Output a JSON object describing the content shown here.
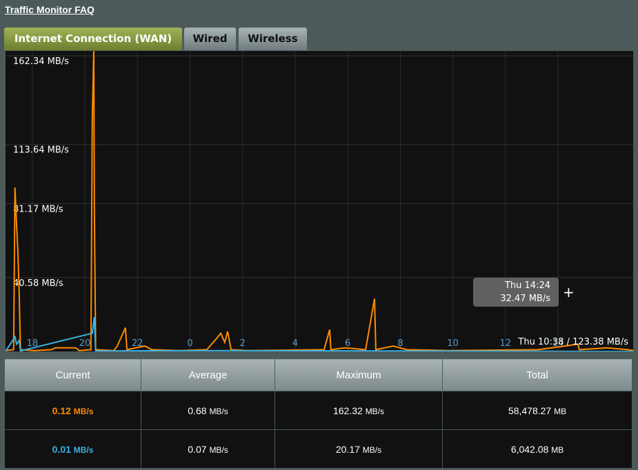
{
  "header": {
    "title": "Traffic Monitor FAQ"
  },
  "tabs": [
    "Internet Connection (WAN)",
    "Wired",
    "Wireless"
  ],
  "chart_data": {
    "type": "line",
    "xlim": [
      16.98,
      40.86
    ],
    "ylim": [
      0,
      165
    ],
    "xticks": [
      18,
      20,
      22,
      {
        "value": 24,
        "label": "0"
      },
      {
        "value": 26,
        "label": "2"
      },
      {
        "value": 28,
        "label": "4"
      },
      {
        "value": 30,
        "label": "6"
      },
      {
        "value": 32,
        "label": "8"
      },
      {
        "value": 34,
        "label": "10"
      },
      {
        "value": 36,
        "label": "12"
      },
      {
        "value": 38,
        "label": "14"
      }
    ],
    "yticks": [
      {
        "value": 40.58,
        "label": "40.58 MB/s"
      },
      {
        "value": 81.17,
        "label": "81.17 MB/s"
      },
      {
        "value": 113.64,
        "label": "113.64 MB/s"
      },
      {
        "value": 162.34,
        "label": "162.34 MB/s"
      }
    ],
    "grid": true,
    "series": [
      {
        "color": "#ff8c00",
        "x": [
          16.98,
          17.29,
          17.34,
          17.4,
          17.45,
          17.5,
          17.55,
          18.08,
          18.73,
          18.87,
          19.65,
          19.78,
          20.23,
          20.28,
          20.34,
          20.36,
          20.41,
          21.1,
          21.23,
          21.54,
          21.6,
          22.28,
          22.54,
          23.59,
          24.64,
          25.06,
          25.17,
          25.32,
          25.43,
          25.56,
          26.22,
          29.1,
          29.31,
          29.36,
          29.89,
          30.68,
          31.02,
          31.07,
          31.73,
          32.25,
          33.83,
          37.24,
          37.76,
          38.76,
          38.81,
          39.86,
          40.65,
          40.86
        ],
        "values": [
          0.5,
          1,
          90,
          70,
          55,
          32,
          1,
          0.5,
          1,
          2,
          2,
          0.5,
          1,
          128,
          166,
          80,
          1,
          0.5,
          3,
          13,
          1,
          3,
          1,
          0.5,
          1,
          8,
          10,
          5,
          11,
          1,
          0.5,
          1,
          12,
          1,
          2,
          1,
          29,
          1,
          3,
          1,
          0.5,
          1,
          2,
          4,
          1,
          2,
          1,
          0.5
        ]
      },
      {
        "color": "#3ab4e6",
        "x": [
          16.98,
          17.34,
          17.4,
          17.5,
          17.55,
          20.28,
          20.36,
          20.41,
          25.17,
          40.86
        ],
        "values": [
          0,
          8,
          4,
          6,
          0.3,
          10,
          19,
          0.3,
          0.5,
          0
        ]
      }
    ],
    "tooltip": {
      "time": "Thu 14:24",
      "value": "32.47 MB/s"
    },
    "status": "Thu 10:38 / 123.38 MB/s"
  },
  "table": {
    "headers": [
      "Current",
      "Average",
      "Maximum",
      "Total"
    ],
    "rows": [
      [
        [
          "0.12",
          "MB/s"
        ],
        [
          "0.68",
          "MB/s"
        ],
        [
          "162.32",
          "MB/s"
        ],
        [
          "58,478.27",
          "MB"
        ]
      ],
      [
        [
          "0.01",
          "MB/s"
        ],
        [
          "0.07",
          "MB/s"
        ],
        [
          "20.17",
          "MB/s"
        ],
        [
          "6,042.08",
          "MB"
        ]
      ]
    ]
  }
}
